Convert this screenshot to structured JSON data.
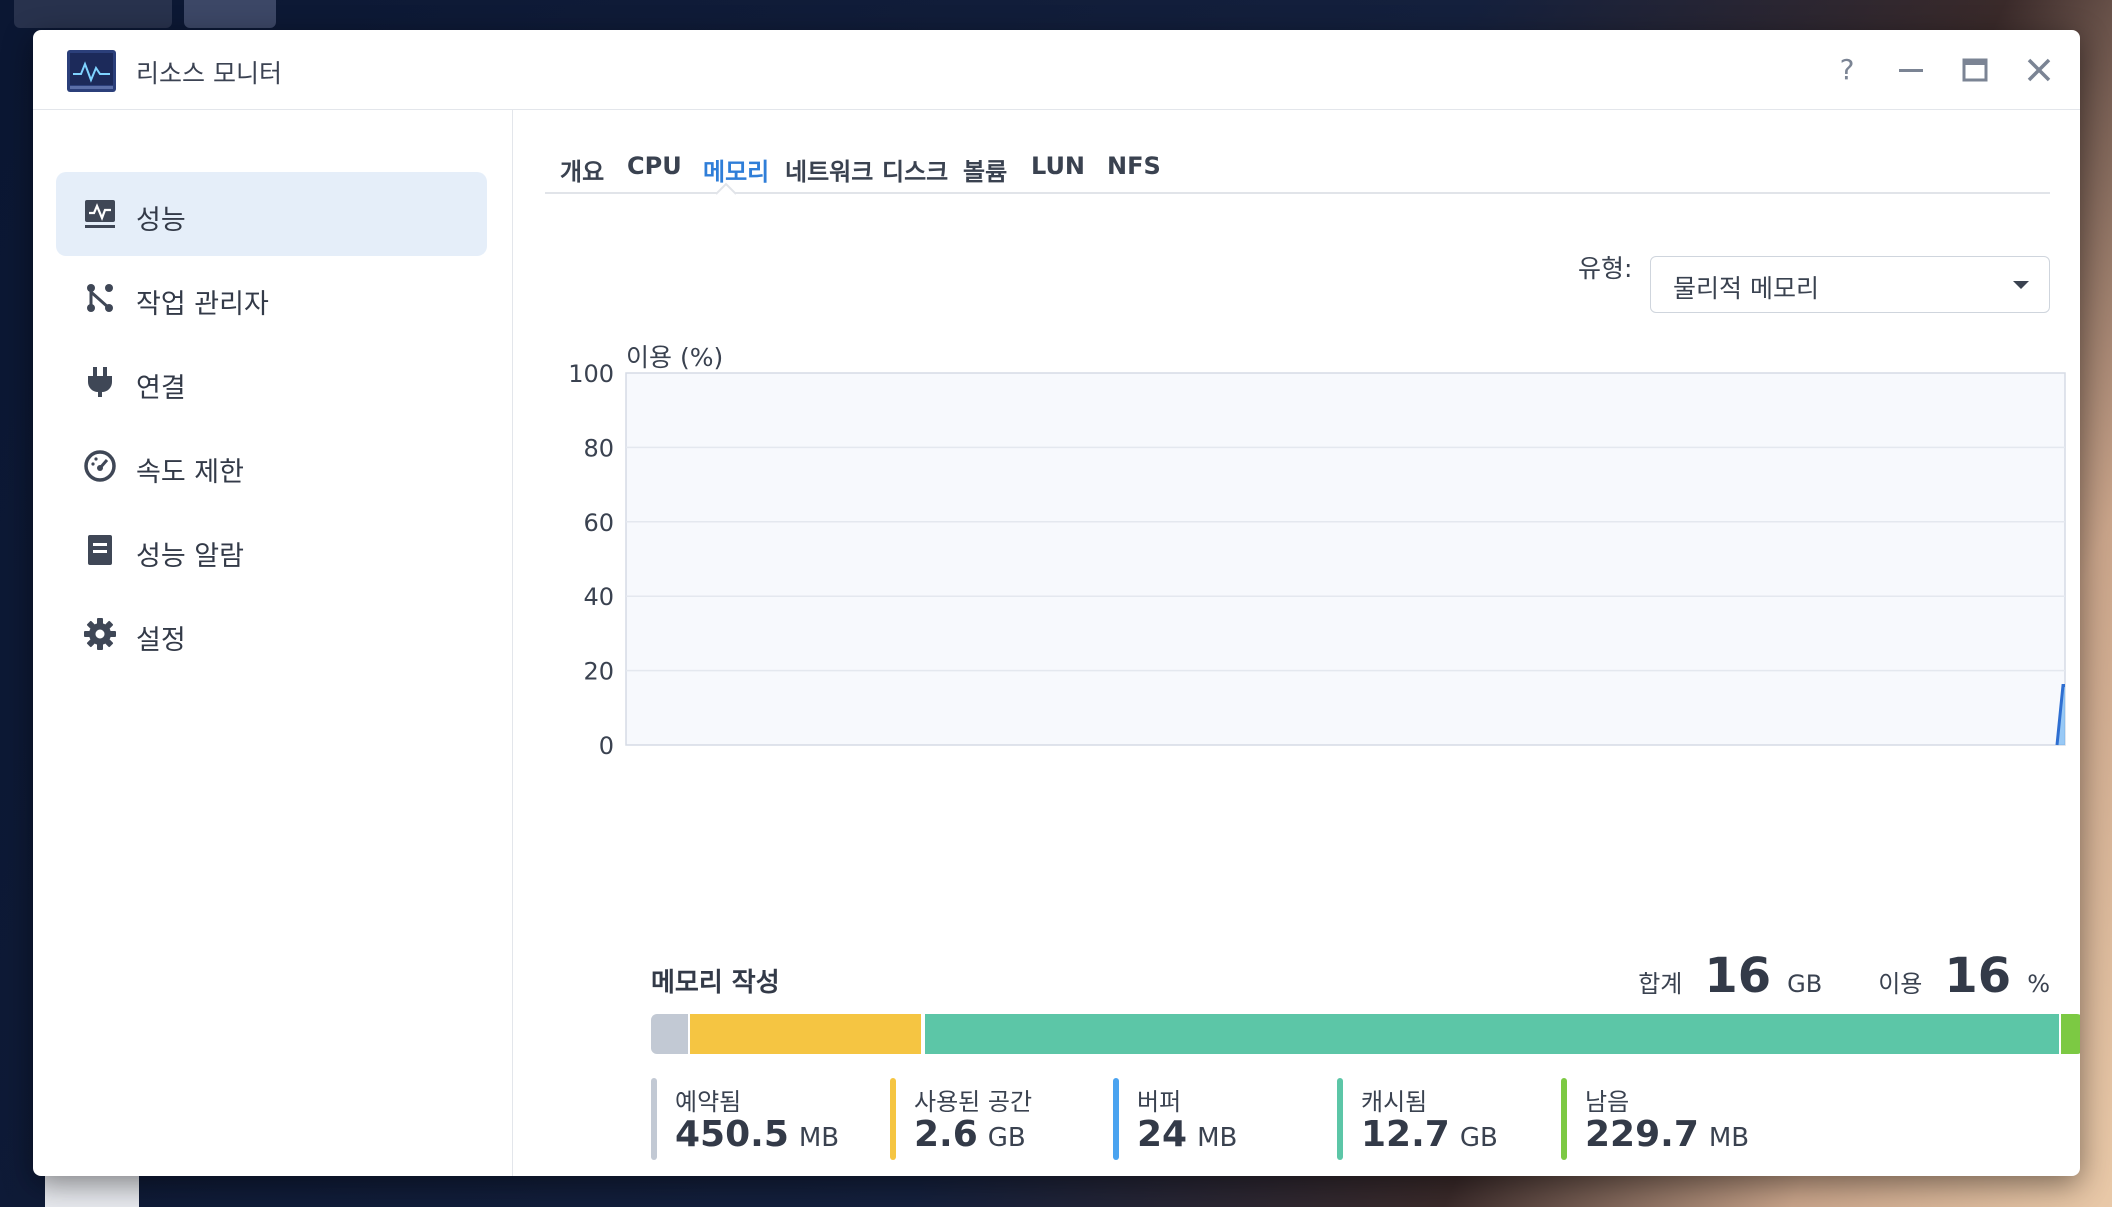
{
  "window": {
    "title": "리소스 모니터"
  },
  "colors": {
    "accent": "#2f7ed8",
    "reserved": "#c2c9d4",
    "used": "#f5c542",
    "buffer": "#4aa3f0",
    "cached": "#5cc6a7",
    "free": "#7cc943"
  },
  "sidebar": {
    "items": [
      {
        "label": "성능",
        "icon": "performance-icon",
        "active": true
      },
      {
        "label": "작업 관리자",
        "icon": "task-manager-icon",
        "active": false
      },
      {
        "label": "연결",
        "icon": "plug-icon",
        "active": false
      },
      {
        "label": "속도 제한",
        "icon": "speedometer-icon",
        "active": false
      },
      {
        "label": "성능 알람",
        "icon": "alarm-document-icon",
        "active": false
      },
      {
        "label": "설정",
        "icon": "gear-icon",
        "active": false
      }
    ]
  },
  "tabs": [
    {
      "label": "개요",
      "active": false
    },
    {
      "label": "CPU",
      "active": false
    },
    {
      "label": "메모리",
      "active": true
    },
    {
      "label": "네트워크",
      "active": false
    },
    {
      "label": "디스크",
      "active": false
    },
    {
      "label": "볼륨",
      "active": false
    },
    {
      "label": "LUN",
      "active": false
    },
    {
      "label": "NFS",
      "active": false
    }
  ],
  "type_filter": {
    "label": "유형:",
    "value": "물리적 메모리"
  },
  "chart_data": {
    "type": "area",
    "title": "",
    "ylabel": "이용 (%)",
    "xlabel": "",
    "ylim": [
      0,
      100
    ],
    "yticks": [
      0,
      20,
      40,
      60,
      80,
      100
    ],
    "grid": true,
    "series": [
      {
        "values": [
          0,
          16
        ]
      }
    ]
  },
  "composition": {
    "title": "메모리 작성",
    "total_label": "합계",
    "total_value": "16",
    "total_unit": "GB",
    "usage_label": "이용",
    "usage_value": "16",
    "usage_unit": "%",
    "segments": [
      {
        "key": "reserved",
        "label": "예약됨",
        "value": "450.5",
        "unit": "MB",
        "fraction": 0.0275
      },
      {
        "key": "used",
        "label": "사용된 공간",
        "value": "2.6",
        "unit": "GB",
        "fraction": 0.1625
      },
      {
        "key": "buffer",
        "label": "버퍼",
        "value": "24",
        "unit": "MB",
        "fraction": 0.0015
      },
      {
        "key": "cached",
        "label": "캐시됨",
        "value": "12.7",
        "unit": "GB",
        "fraction": 0.7935
      },
      {
        "key": "free",
        "label": "남음",
        "value": "229.7",
        "unit": "MB",
        "fraction": 0.014
      }
    ]
  }
}
